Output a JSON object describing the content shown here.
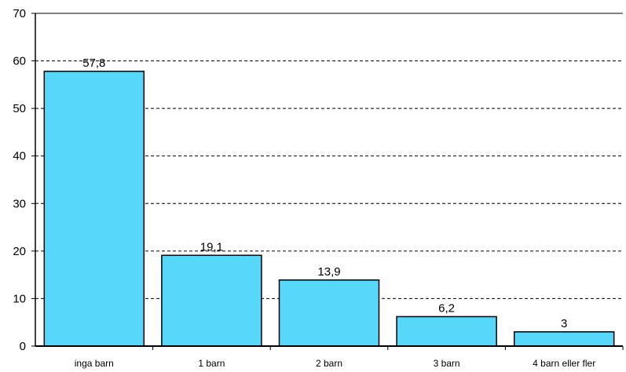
{
  "chart_data": {
    "type": "bar",
    "categories": [
      "inga barn",
      "1 barn",
      "2 barn",
      "3 barn",
      "4 barn eller fler"
    ],
    "values": [
      57.8,
      19.1,
      13.9,
      6.2,
      3
    ],
    "value_labels": [
      "57,8",
      "19,1",
      "13,9",
      "6,2",
      "3"
    ],
    "title": "",
    "xlabel": "",
    "ylabel": "",
    "ylim": [
      0,
      70
    ],
    "yticks": [
      0,
      10,
      20,
      30,
      40,
      50,
      60,
      70
    ],
    "grid": "horizontal dashed",
    "legend": "none",
    "colors": {
      "bar_fill": "#57d8fb",
      "bar_stroke": "#000000",
      "grid": "#000000",
      "axis": "#000000"
    }
  }
}
